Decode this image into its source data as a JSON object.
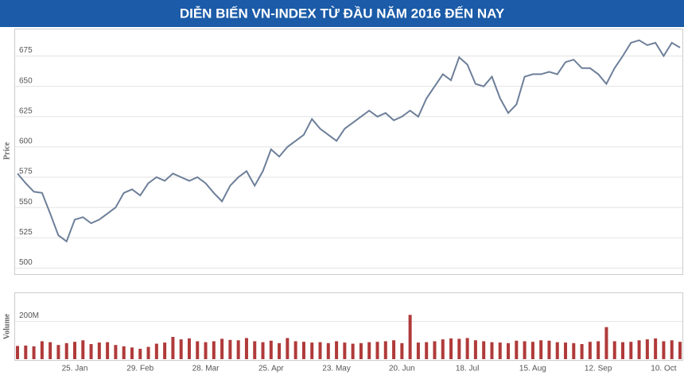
{
  "chart_data": [
    {
      "type": "line",
      "title": "DIỄN BIẾN VN-INDEX TỪ ĐẦU NĂM 2016 ĐẾN NAY",
      "ylabel": "Price",
      "color": "#6d7f99",
      "grid": true,
      "ylim": [
        495,
        697
      ],
      "yticks": [
        500,
        525,
        550,
        575,
        600,
        625,
        650,
        675
      ],
      "values": [
        578,
        570,
        563,
        562,
        545,
        527,
        522,
        540,
        542,
        537,
        540,
        545,
        550,
        562,
        565,
        560,
        570,
        575,
        572,
        578,
        575,
        572,
        575,
        570,
        562,
        555,
        568,
        575,
        580,
        568,
        580,
        598,
        592,
        600,
        605,
        610,
        623,
        615,
        610,
        605,
        615,
        620,
        625,
        630,
        625,
        628,
        622,
        625,
        630,
        625,
        640,
        650,
        660,
        655,
        674,
        668,
        652,
        650,
        658,
        640,
        628,
        635,
        658,
        660,
        660,
        662,
        660,
        670,
        672,
        665,
        665,
        660,
        652,
        665,
        675,
        686,
        688,
        684,
        686,
        675,
        686,
        682
      ]
    },
    {
      "type": "bar",
      "ylabel": "Volume",
      "color": "#b03a3a",
      "grid": true,
      "ylim": [
        0,
        350
      ],
      "yticks": [
        {
          "value": 200,
          "label": "200M"
        }
      ],
      "categories": [
        null,
        null,
        null,
        null,
        null,
        null,
        null,
        "25. Jan",
        null,
        null,
        null,
        null,
        null,
        null,
        null,
        "29. Feb",
        null,
        null,
        null,
        null,
        null,
        null,
        null,
        "28. Mar",
        null,
        null,
        null,
        null,
        null,
        null,
        null,
        "25. Apr",
        null,
        null,
        null,
        null,
        null,
        null,
        null,
        "23. May",
        null,
        null,
        null,
        null,
        null,
        null,
        null,
        "20. Jun",
        null,
        null,
        null,
        null,
        null,
        null,
        null,
        "18. Jul",
        null,
        null,
        null,
        null,
        null,
        null,
        null,
        "15. Aug",
        null,
        null,
        null,
        null,
        null,
        null,
        null,
        "12. Sep",
        null,
        null,
        null,
        null,
        null,
        null,
        null,
        "10. Oct",
        null,
        null
      ],
      "values": [
        70,
        72,
        68,
        95,
        90,
        75,
        85,
        92,
        100,
        80,
        88,
        90,
        75,
        68,
        62,
        55,
        65,
        82,
        88,
        118,
        105,
        110,
        95,
        90,
        95,
        108,
        102,
        100,
        112,
        95,
        90,
        98,
        85,
        112,
        95,
        92,
        88,
        90,
        85,
        95,
        88,
        82,
        85,
        90,
        92,
        95,
        100,
        85,
        235,
        88,
        90,
        95,
        105,
        110,
        108,
        112,
        100,
        95,
        90,
        88,
        85,
        98,
        95,
        92,
        100,
        98,
        90,
        88,
        85,
        80,
        92,
        95,
        170,
        95,
        90,
        92,
        100,
        105,
        110,
        95,
        100,
        92
      ]
    }
  ]
}
